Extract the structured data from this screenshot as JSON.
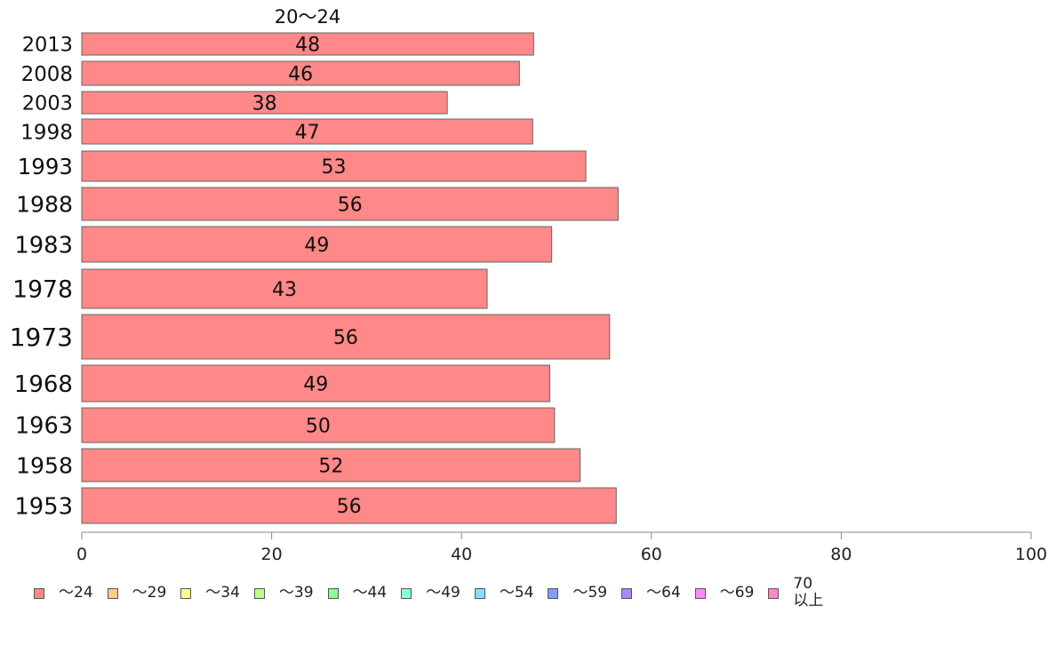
{
  "chart_data": {
    "type": "bar",
    "orientation": "horizontal",
    "title": "20〜24",
    "categories": [
      "2013",
      "2008",
      "2003",
      "1998",
      "1993",
      "1988",
      "1983",
      "1978",
      "1973",
      "1968",
      "1963",
      "1958",
      "1953"
    ],
    "values": [
      47.6,
      46.1,
      38.5,
      47.5,
      53.1,
      56.5,
      49.5,
      42.7,
      55.6,
      49.3,
      49.8,
      52.5,
      56.3
    ],
    "value_labels": [
      "48",
      "46",
      "38",
      "47",
      "53",
      "56",
      "49",
      "43",
      "56",
      "49",
      "50",
      "52",
      "56"
    ],
    "series": [
      {
        "name": "〜24",
        "color": "#ff8888"
      }
    ],
    "xlim": [
      0,
      100
    ],
    "x_ticks": [
      "0",
      "20",
      "40",
      "60",
      "80",
      "100"
    ],
    "xlabel": "",
    "ylabel": "",
    "grid": false,
    "legend_position": "bottom"
  },
  "legend": {
    "items": [
      {
        "label": "〜24",
        "color": "#ff8888"
      },
      {
        "label": "〜29",
        "color": "#ffcc88"
      },
      {
        "label": "〜34",
        "color": "#ffff88"
      },
      {
        "label": "〜39",
        "color": "#bbff88"
      },
      {
        "label": "〜44",
        "color": "#88ff99"
      },
      {
        "label": "〜49",
        "color": "#88ffdd"
      },
      {
        "label": "〜54",
        "color": "#88ddff"
      },
      {
        "label": "〜59",
        "color": "#8899ff"
      },
      {
        "label": "〜64",
        "color": "#aa88ff"
      },
      {
        "label": "〜69",
        "color": "#ff88ff"
      },
      {
        "label": "70\n以上",
        "color": "#ff88cc"
      }
    ]
  },
  "colors": {
    "bar_stroke": "#666666",
    "axis": "#888888"
  }
}
